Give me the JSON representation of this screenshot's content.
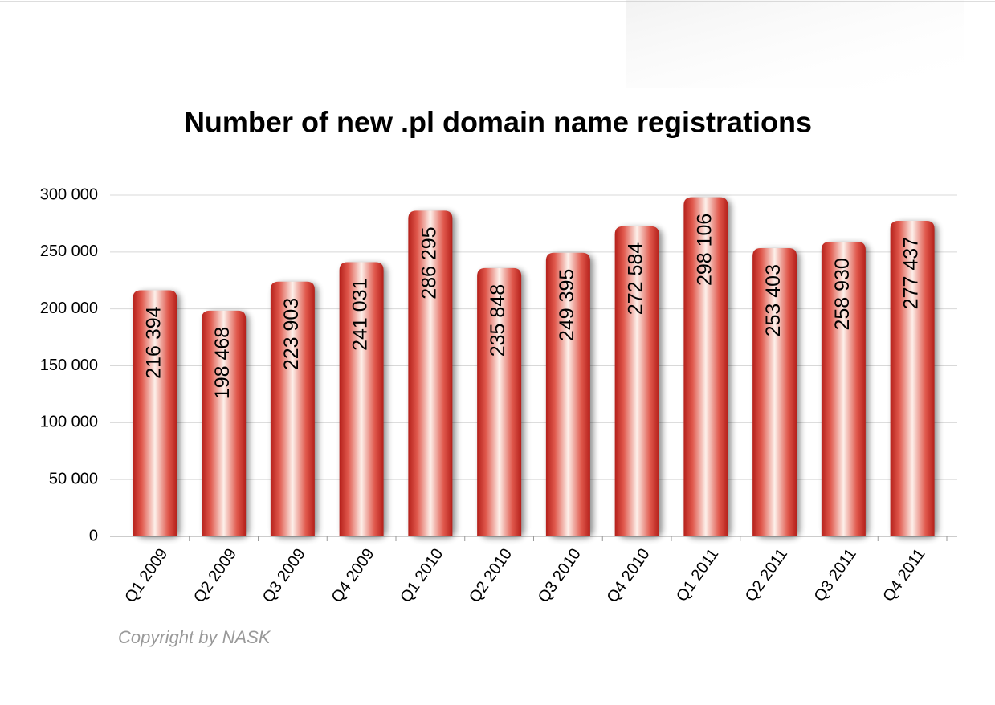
{
  "chart_data": {
    "type": "bar",
    "title": "Number of new .pl domain name registrations",
    "categories": [
      "Q1 2009",
      "Q2 2009",
      "Q3 2009",
      "Q4 2009",
      "Q1 2010",
      "Q2 2010",
      "Q3 2010",
      "Q4 2010",
      "Q1 2011",
      "Q2 2011",
      "Q3 2011",
      "Q4 2011"
    ],
    "values": [
      216394,
      198468,
      223903,
      241031,
      286295,
      235848,
      249395,
      272584,
      298106,
      253403,
      258930,
      277437
    ],
    "value_labels": [
      "216 394",
      "198 468",
      "223 903",
      "241 031",
      "286 295",
      "235 848",
      "249 395",
      "272 584",
      "298 106",
      "253 403",
      "258 930",
      "277 437"
    ],
    "color": "#d9342b",
    "ylim": [
      0,
      300000
    ],
    "yticks": [
      0,
      {
        "value": 50000,
        "label": "50 000"
      },
      {
        "value": 100000,
        "label": "100 000"
      },
      {
        "value": 150000,
        "label": "150 000"
      },
      {
        "value": 200000,
        "label": "200 000"
      },
      {
        "value": 250000,
        "label": "250 000"
      },
      {
        "value": 300000,
        "label": "300 000"
      }
    ],
    "grid": true,
    "copyright": "Copyright by NASK"
  }
}
